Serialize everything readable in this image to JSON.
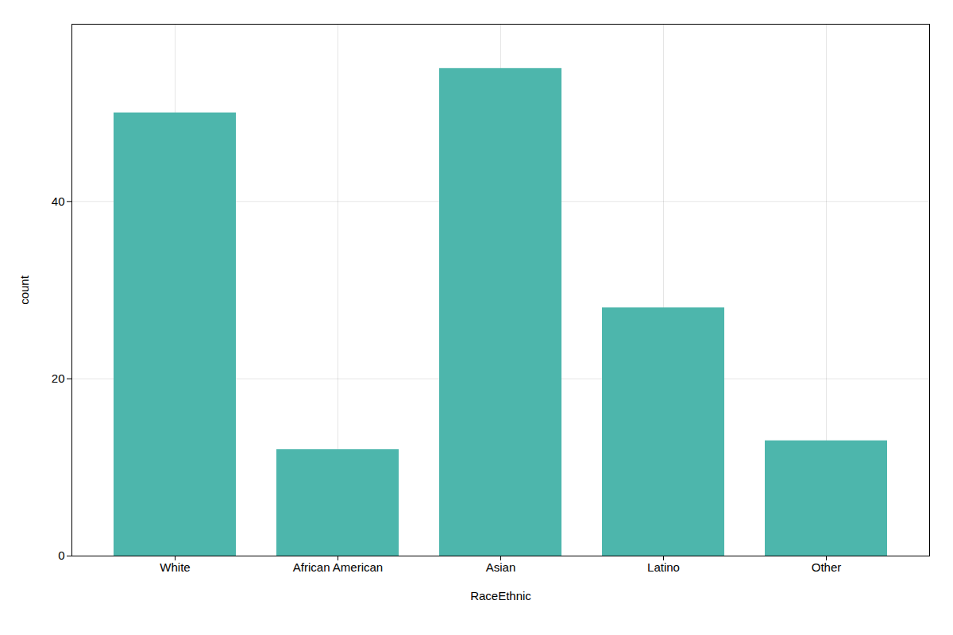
{
  "chart_data": {
    "type": "bar",
    "categories": [
      "White",
      "African American",
      "Asian",
      "Latino",
      "Other"
    ],
    "values": [
      50,
      12,
      55,
      28,
      13
    ],
    "color": "#4DB6AC",
    "xlabel": "RaceEthnic",
    "ylabel": "count",
    "ylim": [
      0,
      60
    ],
    "yticks": [
      0,
      20,
      40
    ],
    "grid": true
  }
}
